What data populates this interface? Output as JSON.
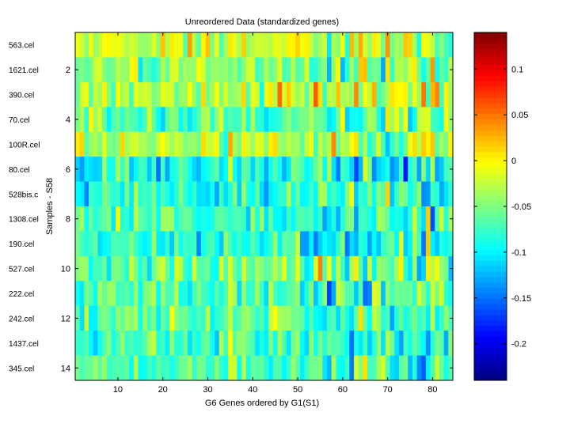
{
  "chart_data": {
    "type": "heatmap",
    "title": "Unreordered Data (standardized genes)",
    "xlabel": "G6 Genes ordered by G1(S1)",
    "ylabel": "Samples - S58",
    "n_cols": 84,
    "n_rows": 14,
    "xlim": [
      0.5,
      84.5
    ],
    "ylim": [
      0.5,
      14.5
    ],
    "x_ticks": [
      10,
      20,
      30,
      40,
      50,
      60,
      70,
      80
    ],
    "y_ticks": [
      2,
      4,
      6,
      8,
      10,
      12,
      14
    ],
    "row_labels": [
      "563.cel",
      "1621.cel",
      "390.cel",
      "70.cel",
      "100R.cel",
      "80.cel",
      "528bis.c",
      "1308.cel",
      "190.cel",
      "527.cel",
      "222.cel",
      "242.cel",
      "1437.cel",
      "345.cel"
    ],
    "row_means": [
      -0.02,
      -0.05,
      -0.03,
      -0.06,
      -0.03,
      -0.09,
      -0.08,
      -0.07,
      -0.08,
      -0.06,
      -0.07,
      -0.06,
      -0.08,
      -0.07
    ],
    "colorbar": {
      "min": -0.24,
      "max": 0.14,
      "ticks": [
        0.1,
        0.05,
        0,
        -0.05,
        -0.1,
        -0.15,
        -0.2
      ],
      "tick_labels": [
        "0.1",
        "0.05",
        "0",
        "-0.05",
        "-0.1",
        "-0.15",
        "-0.2"
      ],
      "colormap": "jet"
    }
  }
}
